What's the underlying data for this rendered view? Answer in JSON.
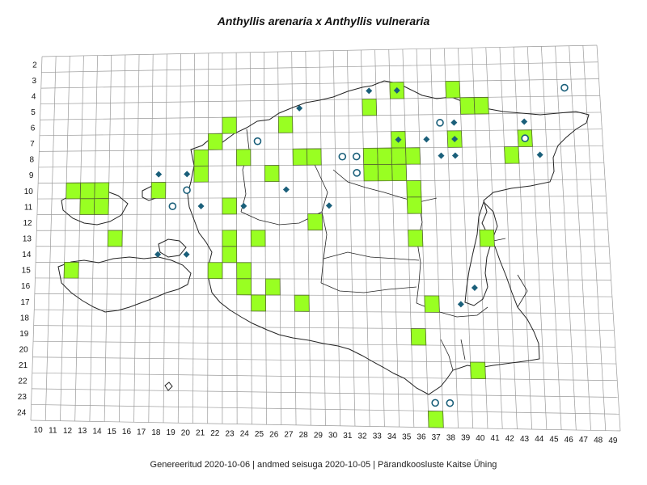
{
  "title": "Anthyllis arenaria x Anthyllis vulneraria",
  "footer": "Genereeritud 2020-10-06  |  andmed seisuga 2020-10-05  |  Pärandkoosluste Kaitse Ühing",
  "grid": {
    "row_labels": [
      "2",
      "3",
      "4",
      "5",
      "6",
      "7",
      "8",
      "9",
      "10",
      "11",
      "12",
      "13",
      "14",
      "15",
      "16",
      "17",
      "18",
      "19",
      "20",
      "21",
      "22",
      "23",
      "24"
    ],
    "col_labels": [
      "10",
      "11",
      "12",
      "13",
      "14",
      "15",
      "16",
      "17",
      "18",
      "19",
      "20",
      "21",
      "22",
      "23",
      "24",
      "25",
      "26",
      "27",
      "28",
      "29",
      "30",
      "31",
      "32",
      "33",
      "34",
      "35",
      "36",
      "37",
      "38",
      "39",
      "40",
      "41",
      "42",
      "43",
      "44",
      "45",
      "46",
      "47",
      "48",
      "49"
    ]
  },
  "colors": {
    "square_fill": "#99ff22",
    "square_stroke": "#556b2f",
    "diamond": "#1a5f7a",
    "circle": "#1a5f7a",
    "grid_line": "#9a9a9a",
    "coast": "#222222"
  },
  "legend_hint": {
    "squares": "green squares",
    "diamonds": "filled diamonds",
    "circles": "open circles"
  },
  "occupied_squares": [
    [
      12,
      10
    ],
    [
      13,
      10
    ],
    [
      13,
      11
    ],
    [
      14,
      10
    ],
    [
      14,
      11
    ],
    [
      12,
      15
    ],
    [
      15,
      13
    ],
    [
      18,
      10
    ],
    [
      21,
      9
    ],
    [
      21,
      8
    ],
    [
      22,
      7
    ],
    [
      23,
      6
    ],
    [
      23,
      11
    ],
    [
      23,
      13
    ],
    [
      23,
      14
    ],
    [
      24,
      8
    ],
    [
      22,
      15
    ],
    [
      24,
      15
    ],
    [
      24,
      16
    ],
    [
      25,
      13
    ],
    [
      25,
      17
    ],
    [
      26,
      9
    ],
    [
      26,
      16
    ],
    [
      27,
      6
    ],
    [
      28,
      8
    ],
    [
      28,
      17
    ],
    [
      29,
      8
    ],
    [
      29,
      12
    ],
    [
      33,
      5
    ],
    [
      33,
      8
    ],
    [
      33,
      9
    ],
    [
      34,
      8
    ],
    [
      34,
      9
    ],
    [
      35,
      4
    ],
    [
      35,
      7
    ],
    [
      35,
      8
    ],
    [
      35,
      9
    ],
    [
      36,
      10
    ],
    [
      36,
      11
    ],
    [
      36,
      8
    ],
    [
      36,
      13
    ],
    [
      36,
      19
    ],
    [
      37,
      17
    ],
    [
      37,
      24
    ],
    [
      39,
      4
    ],
    [
      39,
      7
    ],
    [
      40,
      5
    ],
    [
      41,
      5
    ],
    [
      41,
      13
    ],
    [
      40,
      21
    ],
    [
      43,
      8
    ],
    [
      44,
      7
    ]
  ],
  "diamond_points": [
    [
      18,
      9
    ],
    [
      20,
      9
    ],
    [
      18,
      14
    ],
    [
      20,
      14
    ],
    [
      21,
      11
    ],
    [
      24,
      11
    ],
    [
      27,
      10
    ],
    [
      28,
      5
    ],
    [
      30,
      11
    ],
    [
      33,
      4
    ],
    [
      35,
      4
    ],
    [
      35,
      7
    ],
    [
      37,
      7
    ],
    [
      38,
      8
    ],
    [
      39,
      6
    ],
    [
      39,
      7
    ],
    [
      39,
      8
    ],
    [
      40,
      16
    ],
    [
      39,
      17
    ],
    [
      44,
      6
    ],
    [
      45,
      8
    ]
  ],
  "circle_points": [
    [
      19,
      11
    ],
    [
      20,
      10
    ],
    [
      25,
      7
    ],
    [
      31,
      8
    ],
    [
      32,
      8
    ],
    [
      32,
      9
    ],
    [
      38,
      6
    ],
    [
      44,
      7
    ],
    [
      47,
      4
    ],
    [
      37,
      23
    ],
    [
      38,
      23
    ]
  ]
}
